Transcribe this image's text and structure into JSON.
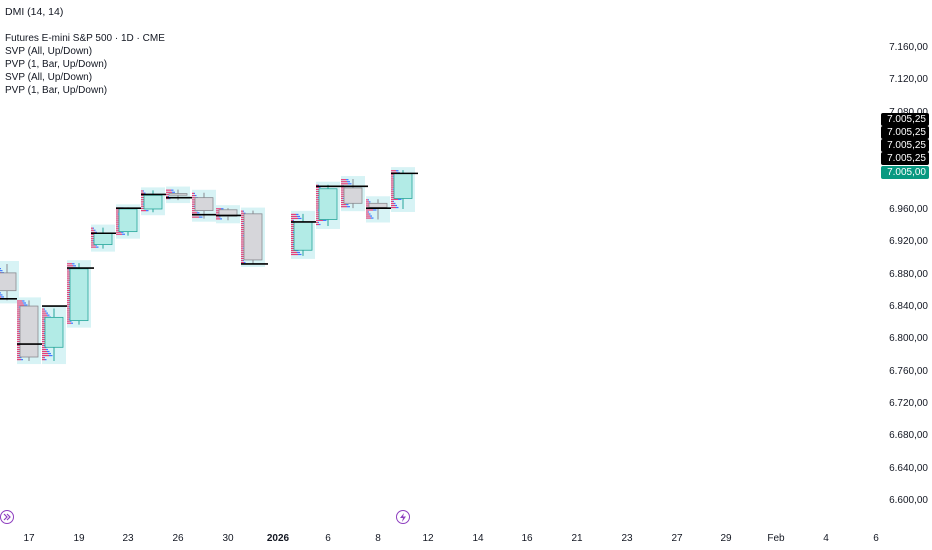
{
  "indicator_header": "DMI (14, 14)",
  "legend": [
    "Futures E-mini S&P 500 · 1D · CME",
    "SVP (All, Up/Down)",
    "PVP (1, Bar, Up/Down)",
    "SVP (All, Up/Down)",
    "PVP (1, Bar, Up/Down)"
  ],
  "price_axis_labels": [
    {
      "text": "7.160,00",
      "value": 7160
    },
    {
      "text": "7.120,00",
      "value": 7120
    },
    {
      "text": "7.080,00",
      "value": 7080
    },
    {
      "text": "6.960,00",
      "value": 6960
    },
    {
      "text": "6.920,00",
      "value": 6920
    },
    {
      "text": "6.880,00",
      "value": 6880
    },
    {
      "text": "6.840,00",
      "value": 6840
    },
    {
      "text": "6.800,00",
      "value": 6800
    },
    {
      "text": "6.760,00",
      "value": 6760
    },
    {
      "text": "6.720,00",
      "value": 6720
    },
    {
      "text": "6.680,00",
      "value": 6680
    },
    {
      "text": "6.640,00",
      "value": 6640
    },
    {
      "text": "6.600,00",
      "value": 6600
    }
  ],
  "price_tags": [
    {
      "text": "7.005,25",
      "color": "#000000"
    },
    {
      "text": "7.005,25",
      "color": "#000000"
    },
    {
      "text": "7.005,25",
      "color": "#000000"
    },
    {
      "text": "7.005,25",
      "color": "#000000"
    },
    {
      "text": "7.005,00",
      "color": "#089981"
    }
  ],
  "time_axis_labels": [
    {
      "text": "17",
      "bold": false
    },
    {
      "text": "19",
      "bold": false
    },
    {
      "text": "23",
      "bold": false
    },
    {
      "text": "26",
      "bold": false
    },
    {
      "text": "30",
      "bold": false
    },
    {
      "text": "2026",
      "bold": true
    },
    {
      "text": "6",
      "bold": false
    },
    {
      "text": "8",
      "bold": false
    },
    {
      "text": "12",
      "bold": false
    },
    {
      "text": "14",
      "bold": false
    },
    {
      "text": "16",
      "bold": false
    },
    {
      "text": "21",
      "bold": false
    },
    {
      "text": "23",
      "bold": false
    },
    {
      "text": "27",
      "bold": false
    },
    {
      "text": "29",
      "bold": false
    },
    {
      "text": "Feb",
      "bold": false
    },
    {
      "text": "4",
      "bold": false
    },
    {
      "text": "6",
      "bold": false
    }
  ],
  "colors": {
    "up_body": "#b2ebe6",
    "up_border": "#26a69a",
    "down_body": "#d6d6da",
    "down_border": "#8a8a90",
    "profile_bg": "#d7f3f5",
    "profile_up": "#2962ff",
    "profile_down": "#e91e63",
    "poc": "#000000",
    "accent_icon": "#8e3fbf"
  },
  "icons": {
    "left_bottom": "double-chevron-right-icon",
    "timeline_marker": "lightning-icon"
  },
  "chart_data": {
    "type": "candlestick",
    "symbol": "Futures E-mini S&P 500 · 1D · CME",
    "ylim": [
      6590,
      7175
    ],
    "candles": [
      {
        "open": 6882,
        "high": 6893,
        "low": 6848,
        "close": 6860,
        "poc": 6850
      },
      {
        "open": 6841,
        "high": 6848,
        "low": 6773,
        "close": 6778,
        "poc": 6794
      },
      {
        "open": 6790,
        "high": 6838,
        "low": 6773,
        "close": 6827,
        "poc": 6841
      },
      {
        "open": 6823,
        "high": 6894,
        "low": 6818,
        "close": 6887,
        "poc": 6888
      },
      {
        "open": 6917,
        "high": 6938,
        "low": 6912,
        "close": 6931,
        "poc": 6931
      },
      {
        "open": 6933,
        "high": 6963,
        "low": 6928,
        "close": 6961,
        "poc": 6962
      },
      {
        "open": 6961,
        "high": 6984,
        "low": 6957,
        "close": 6978,
        "poc": 6979
      },
      {
        "open": 6980,
        "high": 6985,
        "low": 6972,
        "close": 6978,
        "poc": 6975
      },
      {
        "open": 6975,
        "high": 6981,
        "low": 6949,
        "close": 6959,
        "poc": 6954
      },
      {
        "open": 6960,
        "high": 6962,
        "low": 6947,
        "close": 6952,
        "poc": 6953
      },
      {
        "open": 6955,
        "high": 6959,
        "low": 6893,
        "close": 6898,
        "poc": 6893
      },
      {
        "open": 6910,
        "high": 6955,
        "low": 6903,
        "close": 6945,
        "poc": 6945
      },
      {
        "open": 6948,
        "high": 6991,
        "low": 6940,
        "close": 6986,
        "poc": 6989
      },
      {
        "open": 6987,
        "high": 6998,
        "low": 6962,
        "close": 6968,
        "poc": 6989
      },
      {
        "open": 6968,
        "high": 6973,
        "low": 6948,
        "close": 6963,
        "poc": 6962
      },
      {
        "open": 6974,
        "high": 7009,
        "low": 6961,
        "close": 7005,
        "poc": 7005
      }
    ]
  }
}
